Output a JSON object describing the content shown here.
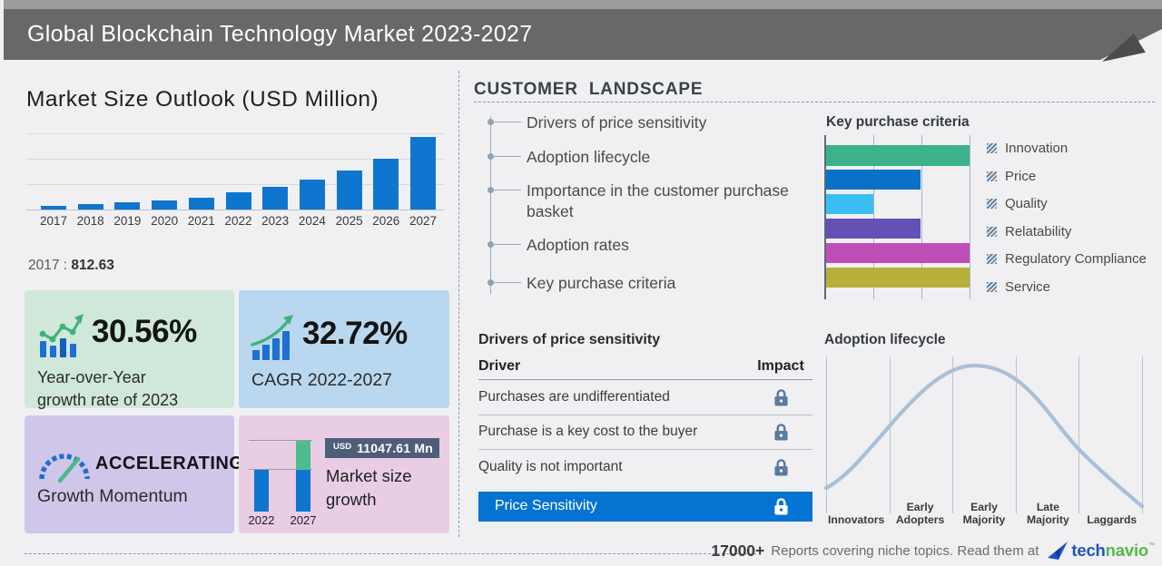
{
  "header": {
    "title": "Global Blockchain Technology Market 2023-2027"
  },
  "market_outlook": {
    "title": "Market Size Outlook (USD Million)",
    "base_year": "2017",
    "base_sep": ":",
    "base_value": "812.63"
  },
  "stats": {
    "yoy_value": "30.56%",
    "yoy_label": "Year-over-Year\ngrowth rate of 2023",
    "cagr_value": "32.72%",
    "cagr_label": "CAGR 2022-2027",
    "momentum_value": "ACCELERATING",
    "momentum_label": "Growth Momentum",
    "growth_currency": "USD",
    "growth_value": "11047.61 Mn",
    "growth_label": "Market size\ngrowth",
    "growth_years": [
      "2022",
      "2027"
    ]
  },
  "customer_landscape": {
    "title": "CUSTOMER LANDSCAPE",
    "items": [
      "Drivers of price sensitivity",
      "Adoption lifecycle",
      "Importance in the customer purchase basket",
      "Adoption rates",
      "Key purchase criteria"
    ]
  },
  "price_sensitivity": {
    "title": "Drivers of price sensitivity",
    "col_driver": "Driver",
    "col_impact": "Impact",
    "rows": [
      "Purchases are undifferentiated",
      "Purchase is a key cost to the buyer",
      "Quality is not important"
    ],
    "footer": "Price Sensitivity"
  },
  "footer": {
    "count": "17000+",
    "text": "Reports covering niche topics. Read them at",
    "brand_blue": "tech",
    "brand_green": "navio",
    "brand_mark": "™"
  },
  "chart_data": [
    {
      "type": "bar",
      "title": "Market Size Outlook (USD Million)",
      "categories": [
        "2017",
        "2018",
        "2019",
        "2020",
        "2021",
        "2022",
        "2023",
        "2024",
        "2025",
        "2026",
        "2027"
      ],
      "values": [
        812.63,
        1075,
        1390,
        1795,
        2320,
        3543.48,
        4626.36,
        6040,
        7886,
        10297,
        14591.09
      ],
      "labeled_values": {
        "2017": 812.63
      },
      "ylabel": "USD Million",
      "bar_color": "#0f76d0",
      "grid": true,
      "ylim": [
        0,
        15000
      ]
    },
    {
      "type": "bar",
      "orientation": "horizontal",
      "title": "Key purchase criteria",
      "categories": [
        "Innovation",
        "Price",
        "Quality",
        "Relatability",
        "Regulatory Compliance",
        "Service"
      ],
      "values": [
        100,
        66,
        33,
        66,
        100,
        100
      ],
      "colors": [
        "#3cb28c",
        "#0b70c7",
        "#39bdf2",
        "#6550b5",
        "#bf4db8",
        "#b6b039"
      ],
      "xlim": [
        0,
        100
      ],
      "legend_position": "right",
      "grid": true
    },
    {
      "type": "bar",
      "title": "Market size growth",
      "categories": [
        "2022",
        "2027"
      ],
      "values": [
        3543.48,
        14591.09
      ],
      "annotation": "USD 11047.61 Mn",
      "bar_color": "#0f76d0",
      "increment_color": "#4dbd8d"
    },
    {
      "type": "line",
      "title": "Adoption lifecycle",
      "shape": "bell_curve",
      "categories": [
        "Innovators",
        "Early Adopters",
        "Early Majority",
        "Late Majority",
        "Laggards"
      ],
      "peak": "Early Majority",
      "line_color": "#abbfd6"
    }
  ]
}
